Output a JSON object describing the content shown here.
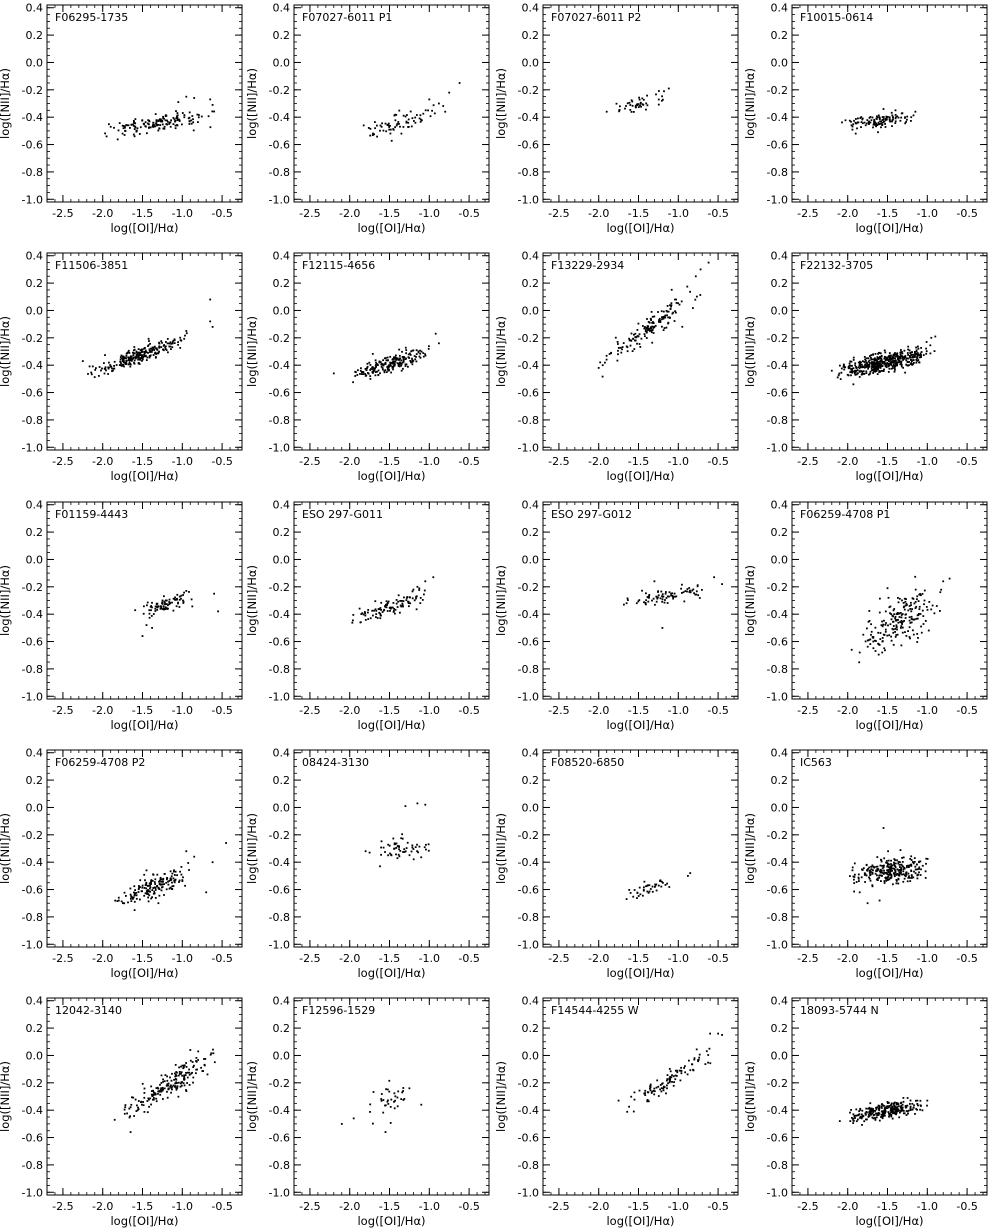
{
  "figure": {
    "xlabel": "log([OI]/Hα)",
    "ylabel": "log([NII]/Hα)",
    "xlim": [
      -2.7,
      -0.25
    ],
    "ylim": [
      -1.02,
      0.42
    ],
    "xticks": [
      -2.5,
      -2.0,
      -1.5,
      -1.0,
      -0.5
    ],
    "yticks": [
      0.4,
      0.2,
      0.0,
      -0.2,
      -0.4,
      -0.6,
      -0.8,
      -1.0
    ]
  },
  "chart_data": [
    {
      "type": "scatter",
      "title": "F06295-1735",
      "xlabel": "log([OI]/Hα)",
      "ylabel": "log([NII]/Hα)",
      "xlim": [
        -2.7,
        -0.25
      ],
      "ylim": [
        -1.02,
        0.42
      ],
      "grid": false,
      "cloud": {
        "xmin": -2.0,
        "xmax": -0.6,
        "slope": 0.08,
        "ymid": -0.44,
        "scatter": 0.03,
        "n": 150
      },
      "points": [
        [
          -0.95,
          -0.25
        ],
        [
          -0.85,
          -0.26
        ],
        [
          -0.65,
          -0.27
        ],
        [
          -0.62,
          -0.31
        ],
        [
          -1.05,
          -0.29
        ],
        [
          -1.75,
          -0.52
        ],
        [
          -1.9,
          -0.47
        ],
        [
          -1.6,
          -0.54
        ]
      ]
    },
    {
      "type": "scatter",
      "title": "F07027-6011 P1",
      "xlabel": "log([OI]/Hα)",
      "ylabel": "log([NII]/Hα)",
      "xlim": [
        -2.7,
        -0.25
      ],
      "ylim": [
        -1.02,
        0.42
      ],
      "grid": false,
      "cloud": {
        "xmin": -1.85,
        "xmax": -0.8,
        "slope": 0.15,
        "ymid": -0.43,
        "scatter": 0.04,
        "n": 70
      },
      "points": [
        [
          -0.62,
          -0.15
        ],
        [
          -0.75,
          -0.22
        ],
        [
          -0.88,
          -0.3
        ],
        [
          -1.0,
          -0.27
        ],
        [
          -0.8,
          -0.36
        ],
        [
          -1.35,
          -0.52
        ],
        [
          -1.6,
          -0.47
        ]
      ]
    },
    {
      "type": "scatter",
      "title": "F07027-6011 P2",
      "xlabel": "log([OI]/Hα)",
      "ylabel": "log([NII]/Hα)",
      "xlim": [
        -2.7,
        -0.25
      ],
      "ylim": [
        -1.02,
        0.42
      ],
      "grid": false,
      "cloud": {
        "xmin": -1.9,
        "xmax": -1.1,
        "slope": 0.12,
        "ymid": -0.3,
        "scatter": 0.03,
        "n": 45
      },
      "points": [
        [
          -1.12,
          -0.19
        ],
        [
          -1.18,
          -0.21
        ],
        [
          -1.9,
          -0.36
        ]
      ]
    },
    {
      "type": "scatter",
      "title": "F10015-0614",
      "xlabel": "log([OI]/Hα)",
      "ylabel": "log([NII]/Hα)",
      "xlim": [
        -2.7,
        -0.25
      ],
      "ylim": [
        -1.02,
        0.42
      ],
      "grid": false,
      "cloud": {
        "xmin": -2.1,
        "xmax": -1.15,
        "slope": 0.06,
        "ymid": -0.43,
        "scatter": 0.025,
        "n": 120
      },
      "points": [
        [
          -1.55,
          -0.34
        ],
        [
          -1.4,
          -0.35
        ],
        [
          -1.9,
          -0.52
        ],
        [
          -1.62,
          -0.51
        ],
        [
          -1.15,
          -0.36
        ]
      ]
    },
    {
      "type": "scatter",
      "title": "F11506-3851",
      "xlabel": "log([OI]/Hα)",
      "ylabel": "log([NII]/Hα)",
      "xlim": [
        -2.7,
        -0.25
      ],
      "ylim": [
        -1.02,
        0.42
      ],
      "grid": false,
      "cloud": {
        "xmin": -2.2,
        "xmax": -0.9,
        "slope": 0.22,
        "ymid": -0.33,
        "scatter": 0.03,
        "n": 260
      },
      "points": [
        [
          -0.65,
          0.08
        ],
        [
          -0.65,
          -0.08
        ],
        [
          -0.62,
          -0.12
        ],
        [
          -0.95,
          -0.15
        ],
        [
          -2.25,
          -0.37
        ]
      ]
    },
    {
      "type": "scatter",
      "title": "F12115-4656",
      "xlabel": "log([OI]/Hα)",
      "ylabel": "log([NII]/Hα)",
      "xlim": [
        -2.7,
        -0.25
      ],
      "ylim": [
        -1.02,
        0.42
      ],
      "grid": false,
      "cloud": {
        "xmin": -2.0,
        "xmax": -1.0,
        "slope": 0.17,
        "ymid": -0.39,
        "scatter": 0.03,
        "n": 210
      },
      "points": [
        [
          -0.92,
          -0.17
        ],
        [
          -0.88,
          -0.24
        ],
        [
          -2.2,
          -0.46
        ]
      ]
    },
    {
      "type": "scatter",
      "title": "F13229-2934",
      "xlabel": "log([OI]/Hα)",
      "ylabel": "log([NII]/Hα)",
      "xlim": [
        -2.7,
        -0.25
      ],
      "ylim": [
        -1.02,
        0.42
      ],
      "grid": false,
      "cloud": {
        "xmin": -2.0,
        "xmax": -0.7,
        "slope": 0.42,
        "ymid": -0.12,
        "scatter": 0.04,
        "n": 150
      },
      "points": [
        [
          -0.72,
          0.3
        ],
        [
          -0.78,
          0.25
        ],
        [
          -0.62,
          0.35
        ],
        [
          -2.0,
          -0.42
        ],
        [
          -1.95,
          -0.4
        ]
      ]
    },
    {
      "type": "scatter",
      "title": "F22132-3705",
      "xlabel": "log([OI]/Hα)",
      "ylabel": "log([NII]/Hα)",
      "xlim": [
        -2.7,
        -0.25
      ],
      "ylim": [
        -1.02,
        0.42
      ],
      "grid": false,
      "cloud": {
        "xmin": -2.2,
        "xmax": -0.9,
        "slope": 0.12,
        "ymid": -0.38,
        "scatter": 0.035,
        "n": 480
      },
      "points": [
        [
          -0.9,
          -0.19
        ],
        [
          -0.95,
          -0.2
        ],
        [
          -2.2,
          -0.44
        ],
        [
          -2.0,
          -0.47
        ]
      ]
    },
    {
      "type": "scatter",
      "title": "F01159-4443",
      "xlabel": "log([OI]/Hα)",
      "ylabel": "log([NII]/Hα)",
      "xlim": [
        -2.7,
        -0.25
      ],
      "ylim": [
        -1.02,
        0.42
      ],
      "grid": false,
      "cloud": {
        "xmin": -1.6,
        "xmax": -0.85,
        "slope": 0.14,
        "ymid": -0.33,
        "scatter": 0.035,
        "n": 85
      },
      "points": [
        [
          -0.95,
          -0.23
        ],
        [
          -0.6,
          -0.25
        ],
        [
          -0.55,
          -0.38
        ],
        [
          -1.5,
          -0.56
        ],
        [
          -1.45,
          -0.48
        ],
        [
          -1.38,
          -0.5
        ]
      ]
    },
    {
      "type": "scatter",
      "title": "ESO 297-G011",
      "xlabel": "log([OI]/Hα)",
      "ylabel": "log([NII]/Hα)",
      "xlim": [
        -2.7,
        -0.25
      ],
      "ylim": [
        -1.02,
        0.42
      ],
      "grid": false,
      "cloud": {
        "xmin": -2.0,
        "xmax": -1.0,
        "slope": 0.2,
        "ymid": -0.35,
        "scatter": 0.03,
        "n": 100
      },
      "points": [
        [
          -0.95,
          -0.13
        ],
        [
          -1.05,
          -0.16
        ],
        [
          -1.15,
          -0.2
        ],
        [
          -1.2,
          -0.22
        ]
      ]
    },
    {
      "type": "scatter",
      "title": "ESO 297-G012",
      "xlabel": "log([OI]/Hα)",
      "ylabel": "log([NII]/Hα)",
      "xlim": [
        -2.7,
        -0.25
      ],
      "ylim": [
        -1.02,
        0.42
      ],
      "grid": false,
      "cloud": {
        "xmin": -1.7,
        "xmax": -0.6,
        "slope": 0.12,
        "ymid": -0.27,
        "scatter": 0.03,
        "n": 80
      },
      "points": [
        [
          -1.2,
          -0.5
        ],
        [
          -1.3,
          -0.16
        ],
        [
          -0.55,
          -0.13
        ],
        [
          -0.45,
          -0.18
        ],
        [
          -1.65,
          -0.32
        ]
      ]
    },
    {
      "type": "scatter",
      "title": "F06259-4708 P1",
      "xlabel": "log([OI]/Hα)",
      "ylabel": "log([NII]/Hα)",
      "xlim": [
        -2.7,
        -0.25
      ],
      "ylim": [
        -1.02,
        0.42
      ],
      "grid": false,
      "cloud": {
        "xmin": -1.9,
        "xmax": -0.8,
        "slope": 0.35,
        "ymid": -0.45,
        "scatter": 0.09,
        "n": 200
      },
      "points": [
        [
          -0.72,
          -0.14
        ],
        [
          -0.8,
          -0.16
        ],
        [
          -1.95,
          -0.66
        ],
        [
          -1.85,
          -0.68
        ],
        [
          -1.5,
          -0.21
        ]
      ]
    },
    {
      "type": "scatter",
      "title": "F06259-4708 P2",
      "xlabel": "log([OI]/Hα)",
      "ylabel": "log([NII]/Hα)",
      "xlim": [
        -2.7,
        -0.25
      ],
      "ylim": [
        -1.02,
        0.42
      ],
      "grid": false,
      "cloud": {
        "xmin": -1.85,
        "xmax": -0.85,
        "slope": 0.22,
        "ymid": -0.57,
        "scatter": 0.04,
        "n": 170
      },
      "points": [
        [
          -0.45,
          -0.26
        ],
        [
          -0.95,
          -0.32
        ],
        [
          -0.85,
          -0.36
        ],
        [
          -1.6,
          -0.75
        ],
        [
          -1.3,
          -0.7
        ],
        [
          -0.62,
          -0.4
        ],
        [
          -0.7,
          -0.62
        ]
      ]
    },
    {
      "type": "scatter",
      "title": "08424-3130",
      "xlabel": "log([OI]/Hα)",
      "ylabel": "log([NII]/Hα)",
      "xlim": [
        -2.7,
        -0.25
      ],
      "ylim": [
        -1.02,
        0.42
      ],
      "grid": false,
      "cloud": {
        "xmin": -1.75,
        "xmax": -0.95,
        "slope": 0.05,
        "ymid": -0.3,
        "scatter": 0.04,
        "n": 55
      },
      "points": [
        [
          -1.3,
          0.01
        ],
        [
          -1.15,
          0.03
        ],
        [
          -1.05,
          0.02
        ],
        [
          -1.75,
          -0.33
        ],
        [
          -1.8,
          -0.32
        ],
        [
          -1.62,
          -0.43
        ]
      ]
    },
    {
      "type": "scatter",
      "title": "F08520-6850",
      "xlabel": "log([OI]/Hα)",
      "ylabel": "log([NII]/Hα)",
      "xlim": [
        -2.7,
        -0.25
      ],
      "ylim": [
        -1.02,
        0.42
      ],
      "grid": false,
      "cloud": {
        "xmin": -1.65,
        "xmax": -1.05,
        "slope": 0.22,
        "ymid": -0.58,
        "scatter": 0.025,
        "n": 40
      },
      "points": [
        [
          -0.85,
          -0.48
        ],
        [
          -0.88,
          -0.5
        ],
        [
          -1.65,
          -0.67
        ]
      ]
    },
    {
      "type": "scatter",
      "title": "IC563",
      "xlabel": "log([OI]/Hα)",
      "ylabel": "log([NII]/Hα)",
      "xlim": [
        -2.7,
        -0.25
      ],
      "ylim": [
        -1.02,
        0.42
      ],
      "grid": false,
      "cloud": {
        "xmin": -2.0,
        "xmax": -0.95,
        "slope": 0.05,
        "ymid": -0.46,
        "scatter": 0.045,
        "n": 280
      },
      "points": [
        [
          -1.55,
          -0.15
        ],
        [
          -1.75,
          -0.7
        ],
        [
          -1.6,
          -0.68
        ],
        [
          -1.85,
          -0.62
        ]
      ]
    },
    {
      "type": "scatter",
      "title": "12042-3140",
      "xlabel": "log([OI]/Hα)",
      "ylabel": "log([NII]/Hα)",
      "xlim": [
        -2.7,
        -0.25
      ],
      "ylim": [
        -1.02,
        0.42
      ],
      "grid": false,
      "cloud": {
        "xmin": -1.8,
        "xmax": -0.55,
        "slope": 0.35,
        "ymid": -0.22,
        "scatter": 0.05,
        "n": 190
      },
      "points": [
        [
          -0.9,
          0.04
        ],
        [
          -0.8,
          0.03
        ],
        [
          -1.85,
          -0.47
        ],
        [
          -1.65,
          -0.56
        ]
      ]
    },
    {
      "type": "scatter",
      "title": "F12596-1529",
      "xlabel": "log([OI]/Hα)",
      "ylabel": "log([NII]/Hα)",
      "xlim": [
        -2.7,
        -0.25
      ],
      "ylim": [
        -1.02,
        0.42
      ],
      "grid": false,
      "cloud": {
        "xmin": -1.8,
        "xmax": -1.15,
        "slope": 0.0,
        "ymid": -0.33,
        "scatter": 0.06,
        "n": 35
      },
      "points": [
        [
          -2.1,
          -0.5
        ],
        [
          -1.95,
          -0.46
        ],
        [
          -1.55,
          -0.56
        ],
        [
          -1.25,
          -0.24
        ],
        [
          -1.1,
          -0.36
        ]
      ]
    },
    {
      "type": "scatter",
      "title": "F14544-4255 W",
      "xlabel": "log([OI]/Hα)",
      "ylabel": "log([NII]/Hα)",
      "xlim": [
        -2.7,
        -0.25
      ],
      "ylim": [
        -1.02,
        0.42
      ],
      "grid": false,
      "cloud": {
        "xmin": -1.7,
        "xmax": -0.5,
        "slope": 0.38,
        "ymid": -0.17,
        "scatter": 0.035,
        "n": 100
      },
      "points": [
        [
          -0.5,
          0.16
        ],
        [
          -0.45,
          0.15
        ],
        [
          -0.6,
          0.16
        ],
        [
          -1.75,
          -0.33
        ],
        [
          -1.55,
          -0.27
        ]
      ]
    },
    {
      "type": "scatter",
      "title": "18093-5744 N",
      "xlabel": "log([OI]/Hα)",
      "ylabel": "log([NII]/Hα)",
      "xlim": [
        -2.7,
        -0.25
      ],
      "ylim": [
        -1.02,
        0.42
      ],
      "grid": false,
      "cloud": {
        "xmin": -2.05,
        "xmax": -1.0,
        "slope": 0.1,
        "ymid": -0.41,
        "scatter": 0.028,
        "n": 280
      },
      "points": [
        [
          -2.1,
          -0.48
        ],
        [
          -1.0,
          -0.33
        ],
        [
          -1.3,
          -0.31
        ]
      ]
    }
  ]
}
